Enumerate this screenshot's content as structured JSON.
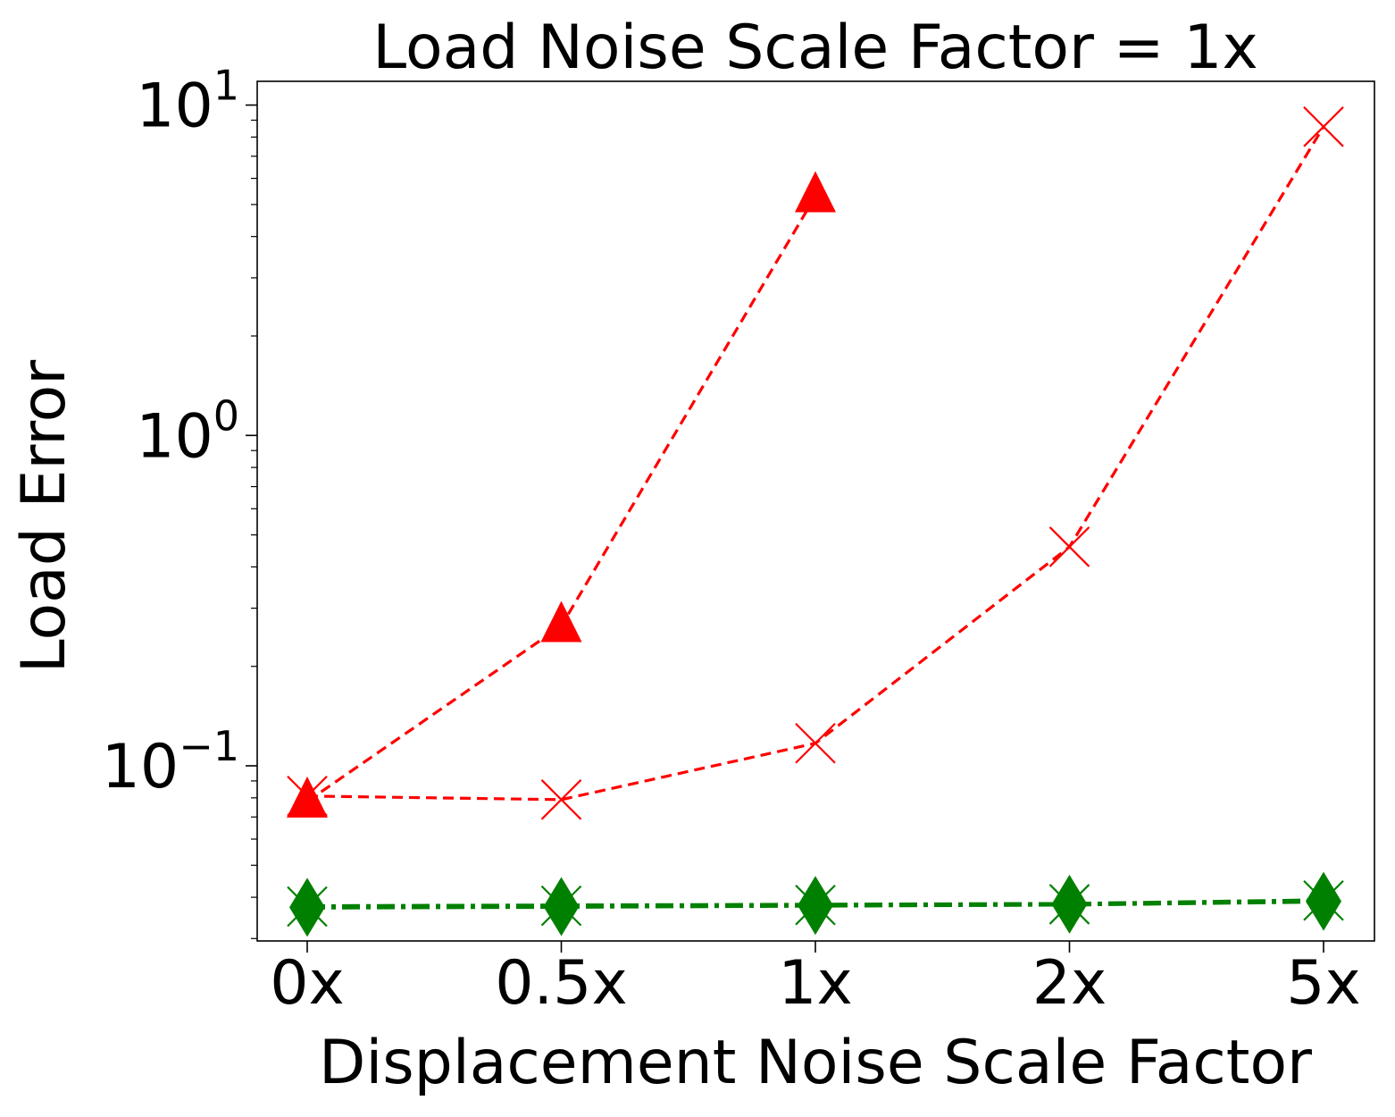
{
  "chart_data": {
    "type": "line",
    "title": "Load Noise Scale Factor = 1x",
    "xlabel": "Displacement Noise Scale Factor",
    "ylabel": "Load Error",
    "categories": [
      "0x",
      "0.5x",
      "1x",
      "2x",
      "5x"
    ],
    "yscale": "log",
    "ylim": [
      0.0295,
      11.8
    ],
    "yticks": [
      {
        "value": 0.1,
        "base": "10",
        "exp": "−1"
      },
      {
        "value": 1,
        "base": "10",
        "exp": "0"
      },
      {
        "value": 10,
        "base": "10",
        "exp": "1"
      }
    ],
    "series": [
      {
        "name": "red-triangle",
        "color": "#ff0000",
        "marker": "triangle",
        "linestyle": "dashed",
        "values": [
          0.078,
          0.265,
          5.3,
          null,
          null
        ]
      },
      {
        "name": "red-x",
        "color": "#ff0000",
        "marker": "x",
        "linestyle": "dashed",
        "values": [
          0.081,
          0.079,
          0.117,
          0.46,
          8.6
        ]
      },
      {
        "name": "green-x",
        "color": "#008000",
        "marker": "x",
        "linestyle": "dashdot",
        "values": [
          0.0375,
          0.0377,
          0.0379,
          0.0381,
          0.0391
        ]
      },
      {
        "name": "green-diamond",
        "color": "#008000",
        "marker": "diamond",
        "linestyle": "dashdot",
        "values": [
          0.0373,
          0.0375,
          0.0378,
          0.0381,
          0.0389
        ]
      }
    ]
  }
}
